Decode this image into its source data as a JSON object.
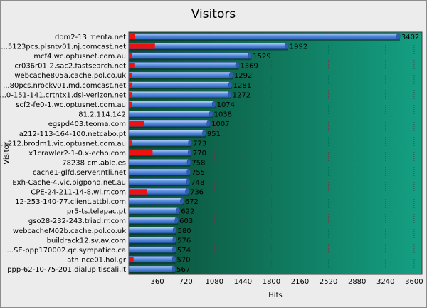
{
  "chart_data": {
    "type": "bar",
    "orientation": "horizontal",
    "title": "Visitors",
    "xlabel": "Hits",
    "ylabel": "Visitor",
    "xlim": [
      0,
      3700
    ],
    "xticks": [
      360,
      720,
      1080,
      1440,
      1800,
      2160,
      2520,
      2880,
      3240,
      3600
    ],
    "grid": true,
    "categories": [
      "dom2-13.menta.net",
      "...5123pcs.plsntv01.nj.comcast.net",
      "mcf4.wc.optusnet.com.au",
      "cr036r01-2.sac2.fastsearch.net",
      "webcache805a.cache.pol.co.uk",
      "...80pcs.nrockv01.md.comcast.net",
      "...0-151-141.crtntx1.dsl-verizon.net",
      "scf2-fe0-1.wc.optusnet.com.au",
      "81.2.114.142",
      "egspd403.teoma.com",
      "a212-113-164-100.netcabo.pt",
      "...212.brodm1.vic.optusnet.com.au",
      "x1crawler2-1-0.x-echo.com",
      "78238-cm.able.es",
      "cache1-glfd.server.ntli.net",
      "Exh-Cache-4.vic.bigpond.net.au",
      "CPE-24-211-14-8.wi.rr.com",
      "12-253-140-77.client.attbi.com",
      "pr5-ts.telepac.pt",
      "gso28-232-243.triad.rr.com",
      "webcacheM02b.cache.pol.co.uk",
      "buildrack12.sv.av.com",
      "...SE-ppp170002.qc.sympatico.ca",
      "ath-nce01.hol.gr",
      "ppp-62-10-75-201.dialup.tiscali.it"
    ],
    "series": [
      {
        "name": "",
        "color": "#5b8fe0",
        "values": [
          3402,
          1992,
          1529,
          1369,
          1292,
          1281,
          1272,
          1074,
          1038,
          1007,
          951,
          773,
          770,
          758,
          755,
          748,
          736,
          672,
          622,
          603,
          580,
          576,
          574,
          570,
          567
        ]
      },
      {
        "name": "",
        "color": "#ee1111",
        "values": [
          80,
          330,
          40,
          70,
          40,
          40,
          40,
          40,
          0,
          190,
          0,
          40,
          300,
          0,
          0,
          0,
          230,
          0,
          0,
          0,
          0,
          0,
          0,
          60,
          0
        ]
      }
    ],
    "value_labels": [
      "3402",
      "1992",
      "1529",
      "1369",
      "1292",
      "1281",
      "1272",
      "1074",
      "1038",
      "1007",
      "951",
      "773",
      "770",
      "758",
      "755",
      "748",
      "736",
      "672",
      "622",
      "603",
      "580",
      "576",
      "574",
      "570",
      "567"
    ],
    "colors": {
      "plot_dark": "#0b4d35",
      "plot_light": "#14a083",
      "grid": "#4a4a4a",
      "bar_fill": "#5b8fe0",
      "bar_highlight": "#c9dcf7",
      "bar_shadow": "#2f5fb3",
      "red_bar": "#ee1111"
    }
  }
}
